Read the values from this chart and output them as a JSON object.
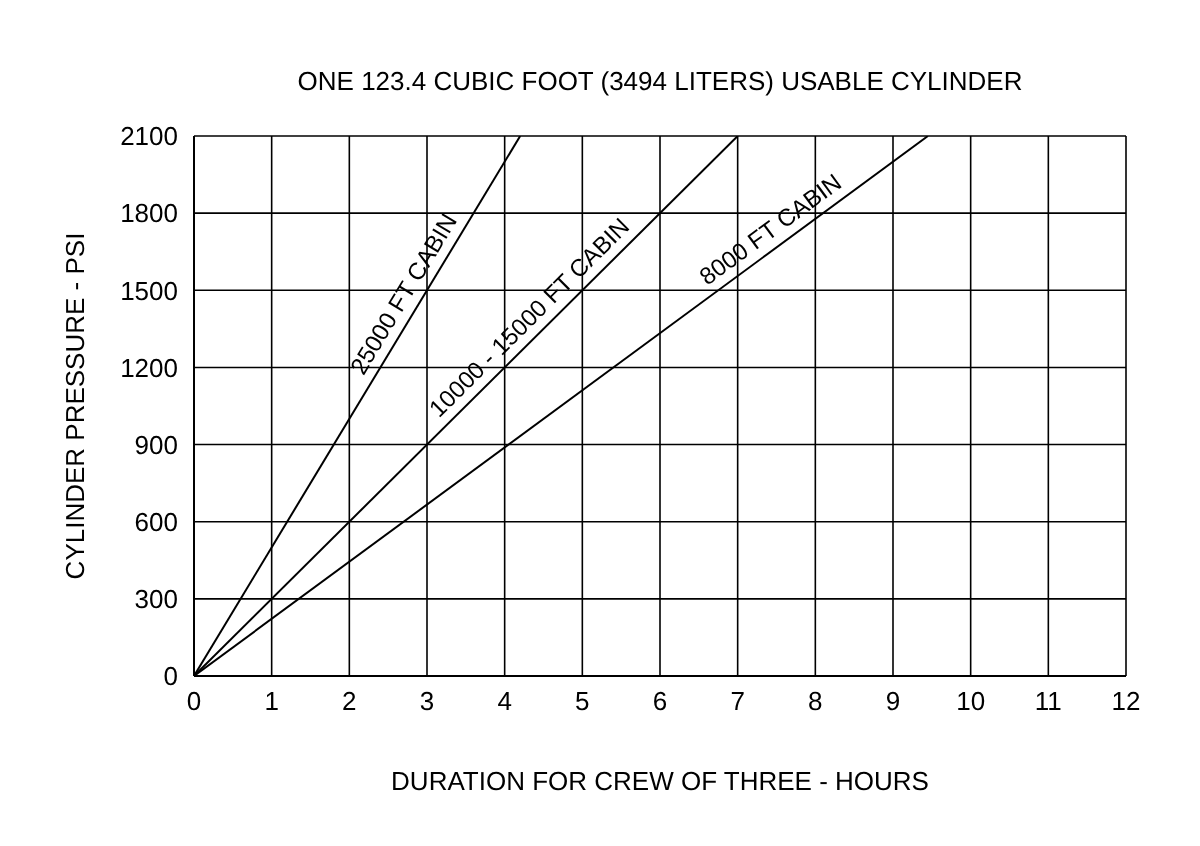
{
  "chart_data": {
    "type": "line",
    "title": "ONE 123.4 CUBIC FOOT (3494 LITERS) USABLE CYLINDER",
    "xlabel": "DURATION FOR CREW OF THREE - HOURS",
    "ylabel": "CYLINDER PRESSURE - PSI",
    "series": [
      {
        "name": "25000 FT CABIN",
        "color": "#000000",
        "x": [
          0,
          4.2
        ],
        "values": [
          0,
          2100
        ]
      },
      {
        "name": "10000 - 15000 FT CABIN",
        "color": "#000000",
        "x": [
          0,
          7
        ],
        "values": [
          0,
          2100
        ]
      },
      {
        "name": "8000 FT CABIN",
        "color": "#000000",
        "x": [
          0,
          9.45
        ],
        "values": [
          0,
          2100
        ]
      }
    ],
    "xlim": [
      0,
      12
    ],
    "xticks": [
      0,
      1,
      2,
      3,
      4,
      5,
      6,
      7,
      8,
      9,
      10,
      11,
      12
    ],
    "ylim": [
      0,
      2100
    ],
    "yticks": [
      0,
      300,
      600,
      900,
      1200,
      1500,
      1800,
      2100
    ],
    "grid": true,
    "legend": false,
    "marker": "none",
    "line_style": "solid"
  }
}
